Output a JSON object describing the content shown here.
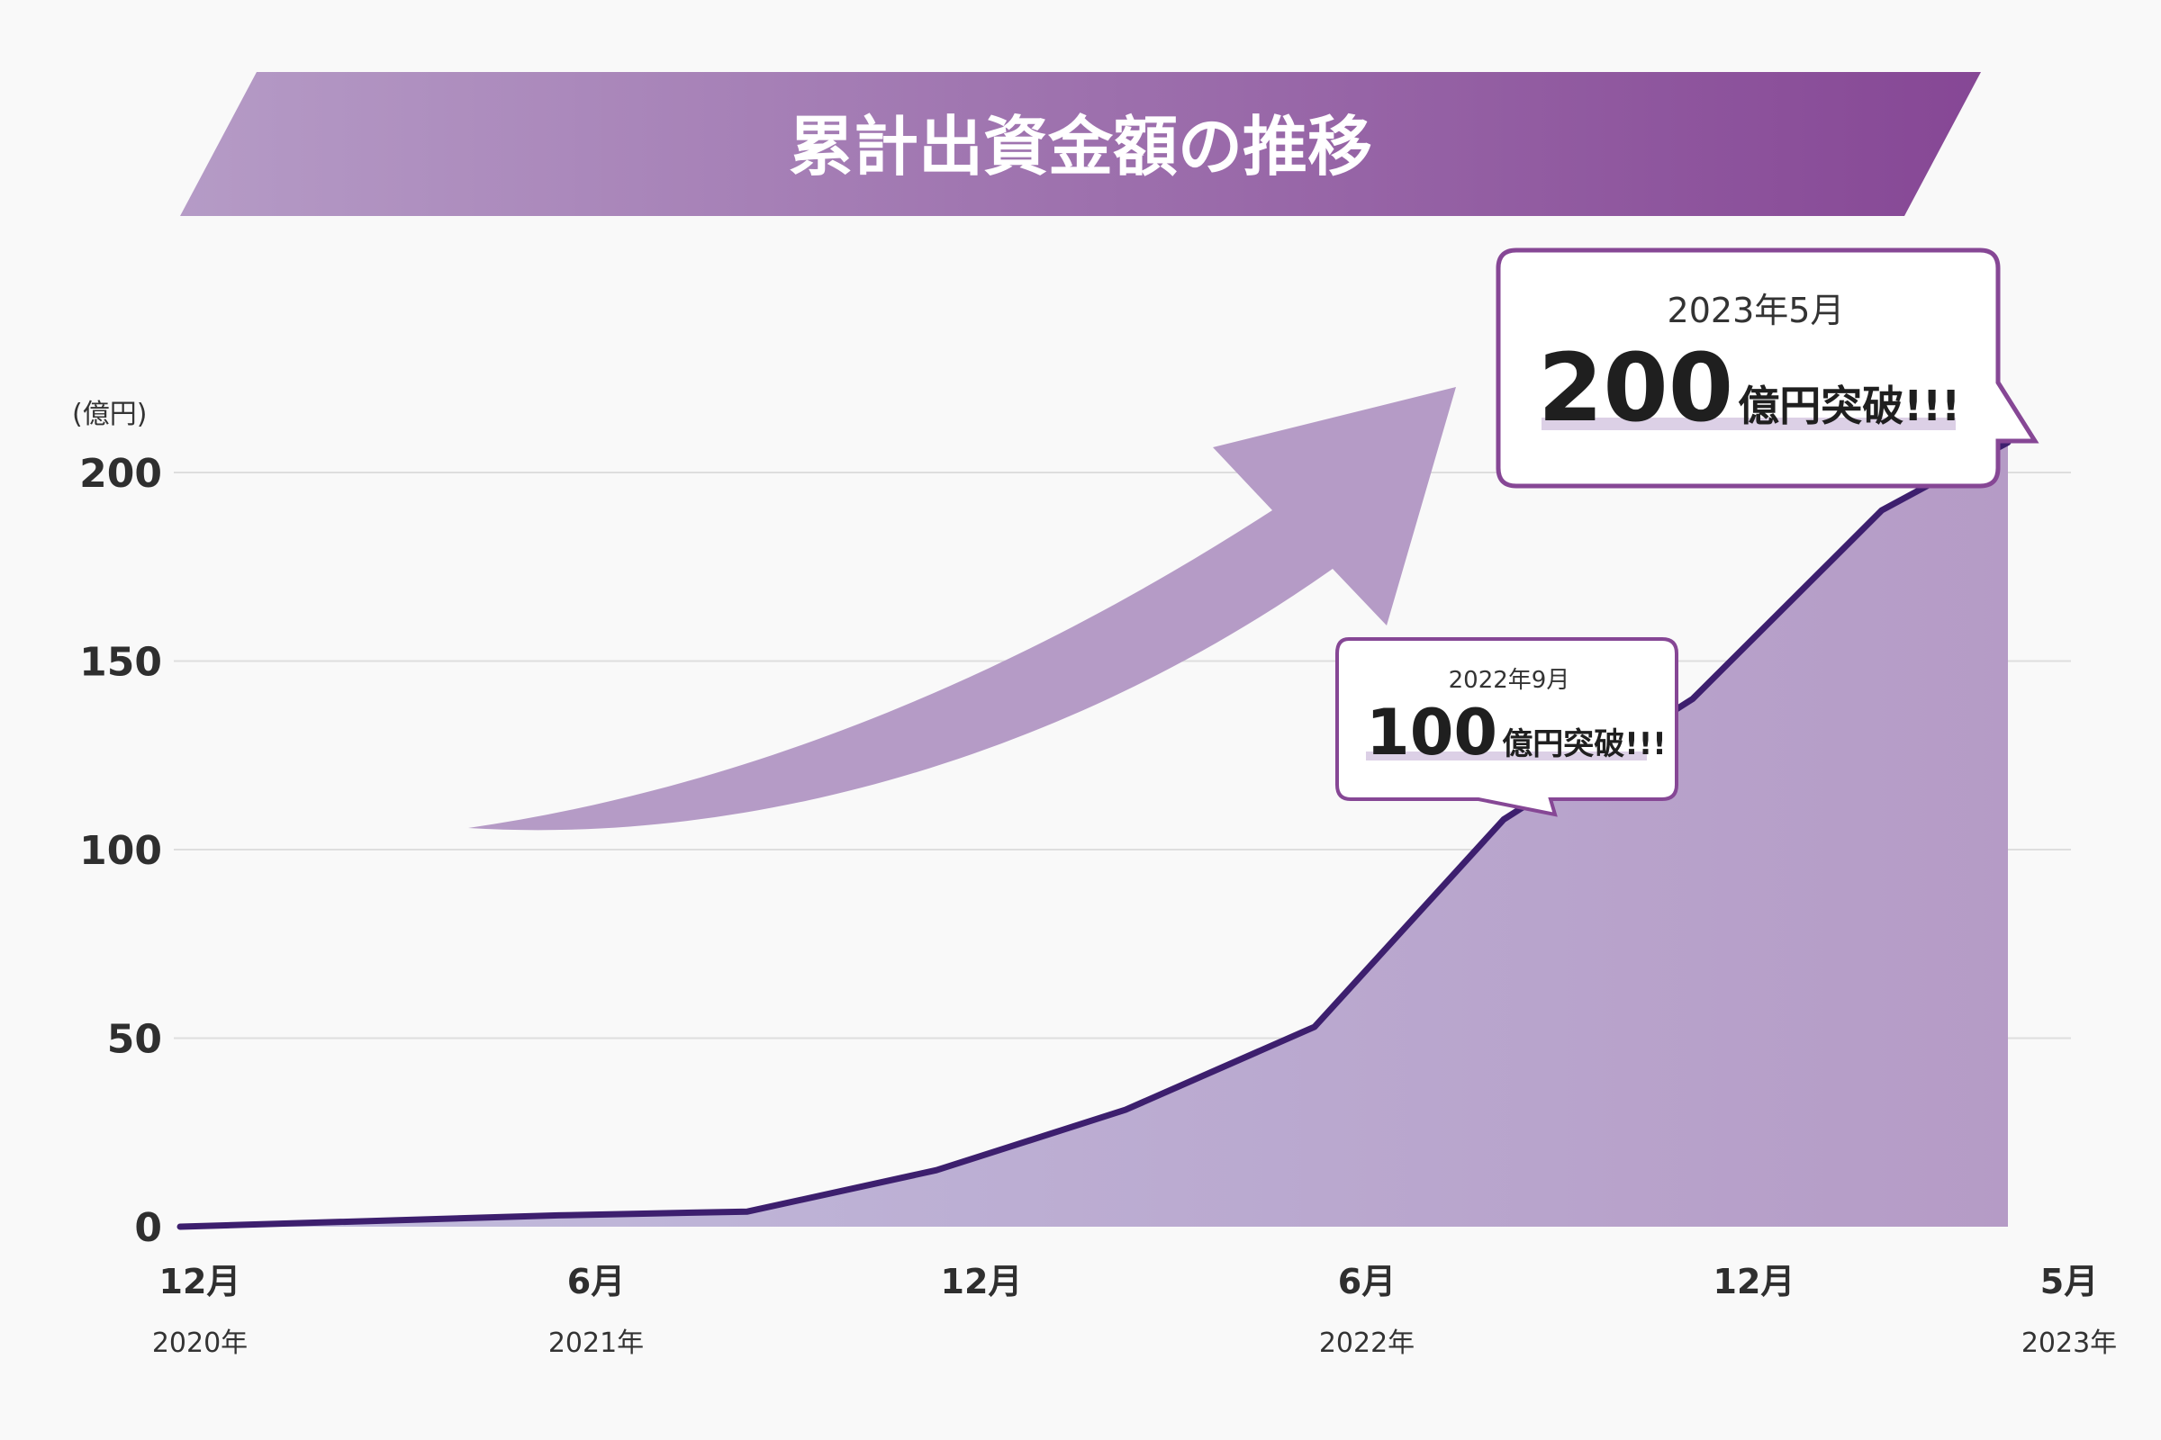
{
  "chart_data": {
    "type": "area",
    "title": "累計出資金額の推移",
    "ylabel": "(億円)",
    "ylim": [
      0,
      200
    ],
    "yticks": [
      "0",
      "50",
      "100",
      "150",
      "200"
    ],
    "x_tick_labels": [
      {
        "month": "12月",
        "year": "2020年"
      },
      {
        "month": "6月",
        "year": "2021年"
      },
      {
        "month": "12月",
        "year": ""
      },
      {
        "month": "6月",
        "year": "2022年"
      },
      {
        "month": "12月",
        "year": ""
      },
      {
        "month": "5月",
        "year": "2023年"
      }
    ],
    "series": [
      {
        "x": [
          "2020-12",
          "2021-01",
          "2021-06",
          "2021-09",
          "2021-12",
          "2022-03",
          "2022-06",
          "2022-09",
          "2022-12",
          "2023-03",
          "2023-05"
        ],
        "values": [
          0,
          0.5,
          3,
          4,
          15,
          31,
          53,
          108,
          140,
          190,
          208
        ]
      }
    ],
    "callouts": [
      {
        "date": "2022年9月",
        "value": "100",
        "suffix": "億円突破!!!"
      },
      {
        "date": "2023年5月",
        "value": "200",
        "suffix": "億円突破!!!"
      }
    ],
    "grid": true,
    "legend": "none"
  },
  "colors": {
    "line": "#3d1f6e",
    "area_left": "#c2bede",
    "area_right": "#b59bc6",
    "banner_left": "#b59bc6",
    "banner_right": "#864795",
    "arrow": "#b59bc6",
    "callout_border": "#864795",
    "highlight": "#dcd0e6"
  }
}
